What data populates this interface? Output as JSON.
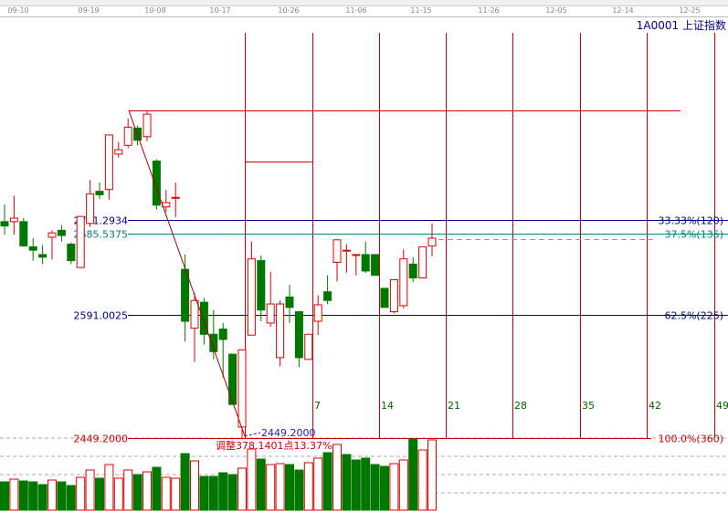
{
  "header": {
    "symbol_title": "1A0001 上证指数",
    "dates": [
      "09-10",
      "09-19",
      "10-08",
      "10-17",
      "10-26",
      "11-06",
      "11-15",
      "11-26",
      "12-05",
      "12-14",
      "12-25"
    ]
  },
  "chart_data": {
    "type": "candlestick",
    "title": "1A0001 上证指数",
    "colors": {
      "up": "#e00000",
      "down": "#007800",
      "fib_blue": "#00008b",
      "fib_teal": "#008080",
      "cycle": "#cc0000"
    },
    "ohlc": [
      [
        2699,
        2719,
        2684,
        2694
      ],
      [
        2699,
        2729,
        2684,
        2703
      ],
      [
        2699,
        2703,
        2670,
        2671
      ],
      [
        2670,
        2680,
        2654,
        2666
      ],
      [
        2661,
        2672,
        2650,
        2658
      ],
      [
        2681,
        2689,
        2655,
        2686
      ],
      [
        2689,
        2695,
        2676,
        2683
      ],
      [
        2673,
        2675,
        2650,
        2654
      ],
      [
        2646,
        2705,
        2646,
        2705
      ],
      [
        2697,
        2747,
        2693,
        2731
      ],
      [
        2734,
        2744,
        2725,
        2730
      ],
      [
        2736,
        2799,
        2724,
        2799
      ],
      [
        2777,
        2791,
        2773,
        2782
      ],
      [
        2787,
        2818,
        2784,
        2808
      ],
      [
        2807,
        2810,
        2787,
        2793
      ],
      [
        2797,
        2827,
        2792,
        2823
      ],
      [
        2769,
        2771,
        2713,
        2718
      ],
      [
        2716,
        2736,
        2710,
        2721
      ],
      [
        2727,
        2744,
        2704,
        2727
      ],
      [
        2644,
        2661,
        2561,
        2584
      ],
      [
        2576,
        2617,
        2537,
        2608
      ],
      [
        2606,
        2611,
        2557,
        2569
      ],
      [
        2569,
        2597,
        2540,
        2549
      ],
      [
        2575,
        2582,
        2519,
        2563
      ],
      [
        2546,
        2546,
        2488,
        2488
      ],
      [
        2462,
        2551,
        2449,
        2551
      ],
      [
        2568,
        2676,
        2568,
        2656
      ],
      [
        2654,
        2660,
        2584,
        2597
      ],
      [
        2582,
        2641,
        2578,
        2604
      ],
      [
        2542,
        2608,
        2532,
        2604
      ],
      [
        2612,
        2626,
        2582,
        2600
      ],
      [
        2595,
        2595,
        2531,
        2542
      ],
      [
        2540,
        2569,
        2540,
        2569
      ],
      [
        2584,
        2614,
        2568,
        2603
      ],
      [
        2618,
        2637,
        2604,
        2608
      ],
      [
        2652,
        2678,
        2630,
        2678
      ],
      [
        2666,
        2673,
        2640,
        2666
      ],
      [
        2661,
        2661,
        2637,
        2661
      ],
      [
        2661,
        2676,
        2640,
        2642
      ],
      [
        2661,
        2661,
        2637,
        2637
      ],
      [
        2622,
        2622,
        2600,
        2600
      ],
      [
        2595,
        2632,
        2593,
        2632
      ],
      [
        2602,
        2667,
        2599,
        2656
      ],
      [
        2650,
        2658,
        2629,
        2634
      ],
      [
        2634,
        2670,
        2634,
        2670
      ],
      [
        2671,
        2697,
        2659,
        2680
      ]
    ],
    "volume": [
      31,
      34,
      32,
      31,
      28,
      33,
      31,
      27,
      36,
      44,
      35,
      50,
      35,
      44,
      39,
      42,
      47,
      36,
      35,
      62,
      54,
      37,
      37,
      41,
      39,
      46,
      67,
      56,
      50,
      51,
      50,
      44,
      52,
      57,
      63,
      72,
      61,
      55,
      57,
      50,
      48,
      51,
      55,
      78,
      66,
      77
    ],
    "volume_up": [
      0,
      1,
      0,
      0,
      0,
      1,
      0,
      0,
      1,
      1,
      0,
      1,
      1,
      1,
      0,
      1,
      0,
      1,
      1,
      0,
      1,
      0,
      0,
      0,
      0,
      1,
      1,
      0,
      1,
      1,
      0,
      0,
      1,
      1,
      0,
      1,
      0,
      0,
      0,
      0,
      0,
      1,
      1,
      0,
      1,
      1
    ],
    "fib_levels": [
      {
        "price": 2701.2934,
        "label": "2701.2934",
        "right_label": "33.33%(120)"
      },
      {
        "price": 2685.5375,
        "label": "2685.5375",
        "right_label": "37.5%(135)"
      },
      {
        "price": 2591.0025,
        "label": "2591.0025",
        "right_label": "62.5%(225)"
      },
      {
        "price": 2449.2,
        "label": "2449.2000",
        "right_label": "100.0%(360)"
      }
    ],
    "high_price": 2827.34,
    "low_label": "2449.2000",
    "adjust_label": "调整378.1401点13.37%",
    "cycle_days": [
      "7",
      "14",
      "21",
      "28",
      "35",
      "42",
      "49"
    ],
    "ylim": [
      2449.2,
      2827.34
    ]
  }
}
